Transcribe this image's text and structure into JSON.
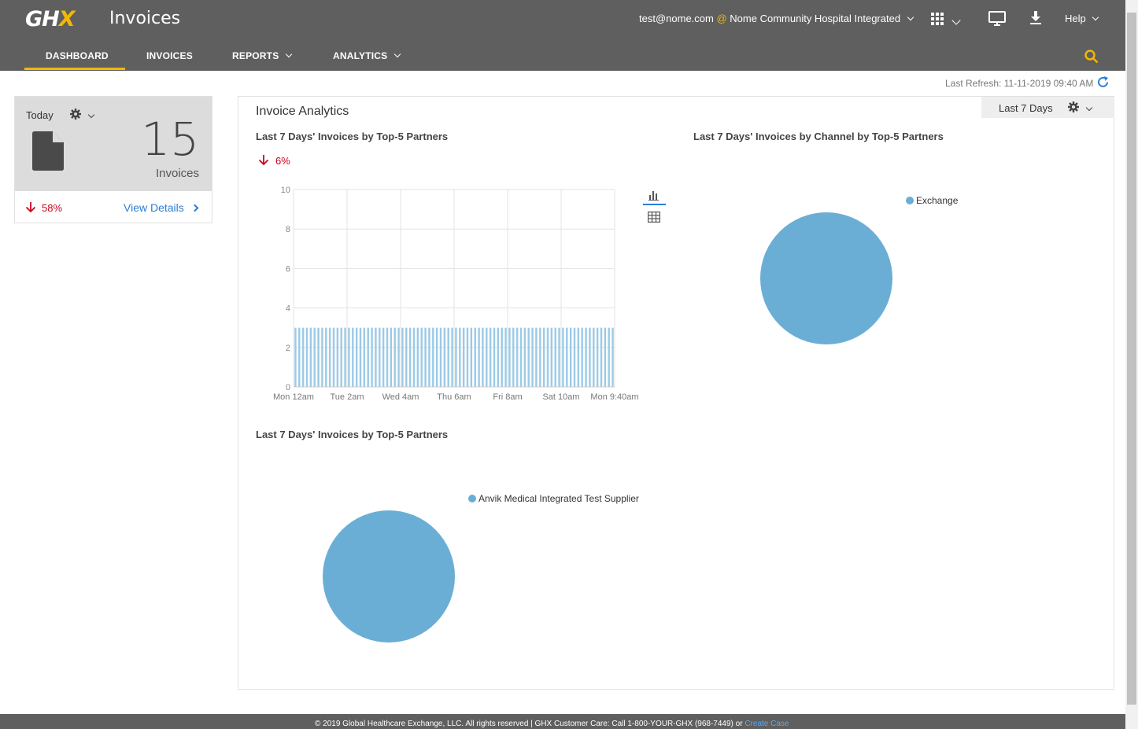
{
  "header": {
    "logo": "GHX",
    "app_title": "Invoices",
    "user_email": "test@nome.com",
    "at_symbol": "@",
    "organization": "Nome Community Hospital Integrated",
    "help_label": "Help"
  },
  "nav": {
    "items": [
      {
        "label": "DASHBOARD",
        "active": true
      },
      {
        "label": "INVOICES"
      },
      {
        "label": "REPORTS",
        "dropdown": true
      },
      {
        "label": "ANALYTICS",
        "dropdown": true
      }
    ]
  },
  "refresh": {
    "label": "Last Refresh: 11-11-2019 09:40 AM"
  },
  "today_card": {
    "period": "Today",
    "count": "15",
    "count_label": "Invoices",
    "change": "58%",
    "change_direction": "down",
    "link": "View Details"
  },
  "analytics": {
    "title": "Invoice Analytics",
    "period": "Last 7 Days",
    "bar_title": "Last 7 Days' Invoices by Top-5 Partners",
    "bar_change": "6%",
    "channel_title": "Last 7 Days' Invoices by Channel by Top-5 Partners",
    "channel_legend": "Exchange",
    "partner_title": "Last 7 Days' Invoices by Top-5 Partners",
    "partner_legend": "Anvik Medical Integrated Test Supplier"
  },
  "chart_data": [
    {
      "type": "bar",
      "x": [
        "Mon 12am",
        "Tue 2am",
        "Wed 4am",
        "Thu 6am",
        "Fri 8am",
        "Sat 10am",
        "Mon 9:40am"
      ],
      "values_note": "",
      "bar_count": 84,
      "bar_value": 3,
      "ylim": [
        0,
        10
      ],
      "yticks": [
        0,
        2,
        4,
        6,
        8,
        10
      ],
      "grid": true
    },
    {
      "type": "pie",
      "labels": [
        "Exchange"
      ],
      "values": [
        100
      ]
    },
    {
      "type": "pie",
      "labels": [
        "Anvik Medical Integrated Test Supplier"
      ],
      "values": [
        100
      ]
    }
  ],
  "colors": {
    "topbar": "#5f5f5f",
    "accent": "#f2b705",
    "series": "#6aaed6",
    "down": "#d0021b",
    "link": "#2a7fd4"
  },
  "footer": {
    "text": "© 2019 Global Healthcare Exchange, LLC. All rights reserved | GHX Customer Care: Call 1-800-YOUR-GHX (968-7449) or ",
    "link": "Create Case"
  }
}
